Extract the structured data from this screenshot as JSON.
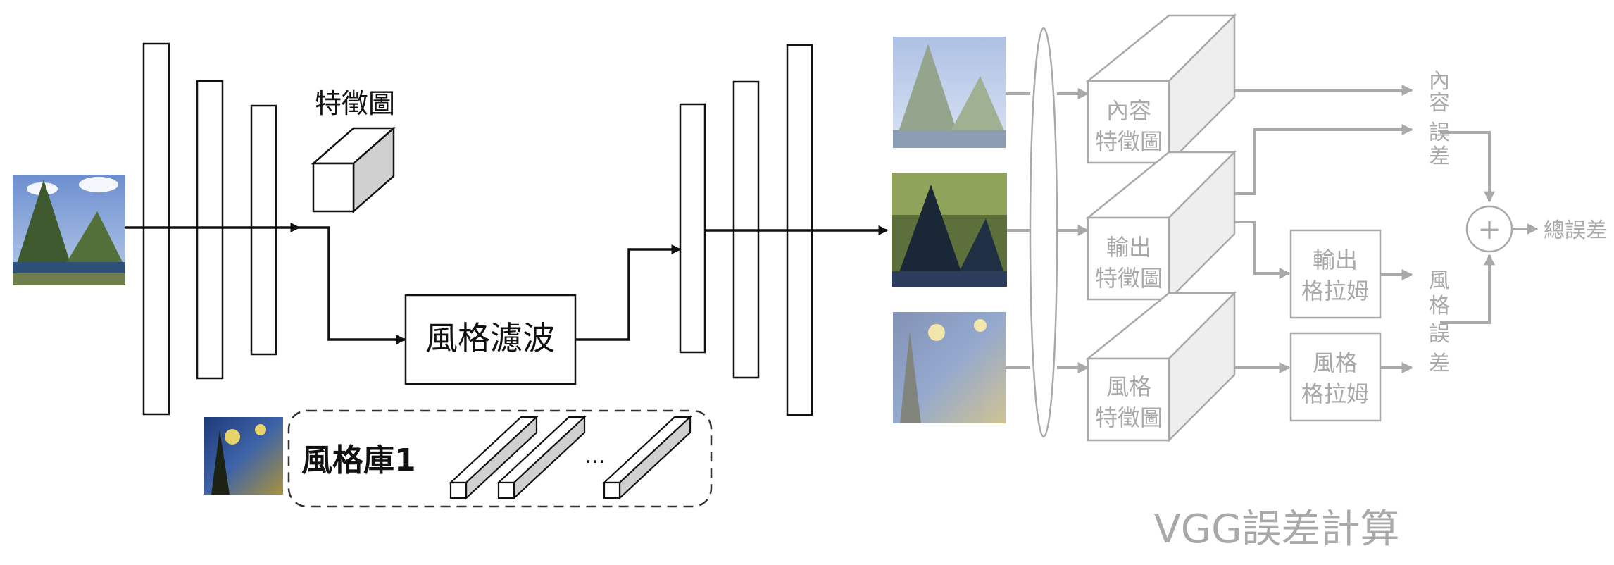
{
  "encoder": {
    "feature_map_label": "特徵圖"
  },
  "style_filter": {
    "label": "風格濾波"
  },
  "style_bank": {
    "label": "風格庫1",
    "ellipsis": "..."
  },
  "vgg": {
    "title": "VGG誤差計算",
    "content_features": [
      "內容",
      "特徵圖"
    ],
    "output_features": [
      "輸出",
      "特徵圖"
    ],
    "style_features": [
      "風格",
      "特徵圖"
    ],
    "output_gram": [
      "輸出",
      "格拉姆"
    ],
    "style_gram": [
      "風格",
      "格拉姆"
    ],
    "content_loss": [
      "內",
      "容",
      "誤",
      "差"
    ],
    "style_loss": [
      "風",
      "格",
      "誤",
      "差"
    ],
    "total_loss": "總誤差",
    "sum_symbol": "+"
  },
  "colors": {
    "active": "#111111",
    "inactive": "#a9a9a9"
  }
}
